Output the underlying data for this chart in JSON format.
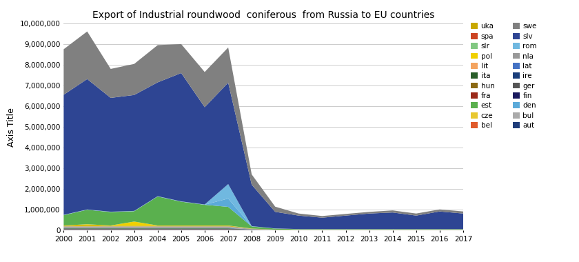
{
  "title": "Export of Industrial roundwood  coniferous  from Russia to EU countries",
  "ylabel": "Axis Title",
  "years": [
    2000,
    2001,
    2002,
    2003,
    2004,
    2005,
    2006,
    2007,
    2008,
    2009,
    2010,
    2011,
    2012,
    2013,
    2014,
    2015,
    2016,
    2017
  ],
  "series": {
    "aut": [
      20000,
      20000,
      20000,
      20000,
      20000,
      20000,
      20000,
      20000,
      5000,
      2000,
      2000,
      2000,
      2000,
      2000,
      2000,
      2000,
      2000,
      2000
    ],
    "bel": [
      5000,
      5000,
      5000,
      5000,
      5000,
      5000,
      5000,
      5000,
      2000,
      1000,
      1000,
      1000,
      1000,
      1000,
      1000,
      1000,
      1000,
      1000
    ],
    "bul": [
      5000,
      5000,
      5000,
      5000,
      5000,
      5000,
      5000,
      5000,
      2000,
      1000,
      1000,
      1000,
      1000,
      1000,
      1000,
      1000,
      1000,
      1000
    ],
    "cze": [
      5000,
      5000,
      5000,
      5000,
      5000,
      5000,
      5000,
      5000,
      2000,
      1000,
      1000,
      1000,
      1000,
      1000,
      1000,
      1000,
      1000,
      1000
    ],
    "den": [
      5000,
      5000,
      5000,
      5000,
      5000,
      5000,
      5000,
      400000,
      5000,
      2000,
      1000,
      1000,
      1000,
      1000,
      1000,
      1000,
      1000,
      1000
    ],
    "est": [
      500000,
      700000,
      650000,
      500000,
      1400000,
      1150000,
      1000000,
      900000,
      100000,
      50000,
      20000,
      20000,
      20000,
      20000,
      20000,
      20000,
      20000,
      20000
    ],
    "fin": [
      20000,
      20000,
      20000,
      20000,
      20000,
      20000,
      20000,
      20000,
      10000,
      5000,
      5000,
      5000,
      5000,
      5000,
      5000,
      5000,
      5000,
      5000
    ],
    "fra": [
      5000,
      5000,
      5000,
      5000,
      5000,
      5000,
      5000,
      5000,
      2000,
      1000,
      1000,
      1000,
      1000,
      1000,
      1000,
      1000,
      1000,
      1000
    ],
    "ger": [
      20000,
      20000,
      20000,
      20000,
      20000,
      20000,
      20000,
      20000,
      10000,
      5000,
      5000,
      5000,
      5000,
      5000,
      5000,
      5000,
      5000,
      5000
    ],
    "hun": [
      5000,
      5000,
      5000,
      5000,
      5000,
      5000,
      5000,
      5000,
      2000,
      1000,
      1000,
      1000,
      1000,
      1000,
      1000,
      1000,
      1000,
      1000
    ],
    "ire": [
      5000,
      5000,
      5000,
      5000,
      5000,
      5000,
      5000,
      5000,
      2000,
      1000,
      1000,
      1000,
      1000,
      1000,
      1000,
      1000,
      1000,
      1000
    ],
    "ita": [
      20000,
      20000,
      20000,
      20000,
      20000,
      20000,
      20000,
      20000,
      5000,
      2000,
      2000,
      2000,
      2000,
      2000,
      2000,
      2000,
      2000,
      2000
    ],
    "lat": [
      20000,
      20000,
      20000,
      20000,
      20000,
      20000,
      20000,
      20000,
      10000,
      5000,
      5000,
      5000,
      5000,
      5000,
      5000,
      5000,
      5000,
      5000
    ],
    "lit": [
      10000,
      10000,
      10000,
      10000,
      10000,
      10000,
      10000,
      10000,
      5000,
      2000,
      2000,
      2000,
      2000,
      2000,
      2000,
      2000,
      2000,
      2000
    ],
    "nla": [
      50000,
      50000,
      50000,
      50000,
      50000,
      50000,
      50000,
      50000,
      20000,
      10000,
      10000,
      10000,
      10000,
      10000,
      10000,
      10000,
      10000,
      10000
    ],
    "pol": [
      10000,
      50000,
      10000,
      200000,
      10000,
      10000,
      10000,
      10000,
      5000,
      2000,
      2000,
      2000,
      2000,
      2000,
      2000,
      2000,
      2000,
      2000
    ],
    "rom": [
      10000,
      10000,
      10000,
      10000,
      10000,
      10000,
      10000,
      700000,
      10000,
      5000,
      5000,
      5000,
      5000,
      5000,
      5000,
      5000,
      5000,
      5000
    ],
    "slr": [
      10000,
      10000,
      10000,
      10000,
      10000,
      10000,
      10000,
      10000,
      5000,
      2000,
      2000,
      2000,
      2000,
      2000,
      2000,
      2000,
      2000,
      2000
    ],
    "slv": [
      5800000,
      6300000,
      5500000,
      5600000,
      5500000,
      6200000,
      4700000,
      4900000,
      2000000,
      800000,
      650000,
      550000,
      650000,
      750000,
      800000,
      650000,
      850000,
      750000
    ],
    "spa": [
      5000,
      5000,
      5000,
      5000,
      5000,
      5000,
      5000,
      5000,
      2000,
      1000,
      1000,
      1000,
      1000,
      1000,
      1000,
      1000,
      1000,
      1000
    ],
    "swe": [
      2200000,
      2300000,
      1400000,
      1500000,
      1800000,
      1400000,
      1700000,
      1700000,
      500000,
      250000,
      100000,
      80000,
      80000,
      80000,
      100000,
      100000,
      100000,
      100000
    ],
    "uka": [
      30000,
      50000,
      30000,
      30000,
      30000,
      30000,
      30000,
      30000,
      10000,
      5000,
      5000,
      5000,
      5000,
      5000,
      5000,
      5000,
      5000,
      5000
    ]
  },
  "colors": {
    "aut": "#1f3d7a",
    "bel": "#e05a2b",
    "bul": "#aaaaaa",
    "cze": "#e8c830",
    "den": "#5baad9",
    "est": "#5ab04e",
    "fin": "#1a1a5e",
    "fra": "#9b2a1a",
    "ger": "#555555",
    "hun": "#8b6914",
    "ire": "#1a3e7a",
    "ita": "#2a5e2a",
    "lat": "#4472c4",
    "lit": "#f4a460",
    "nla": "#999999",
    "pol": "#f0d000",
    "rom": "#70b8e0",
    "slr": "#82c882",
    "slv": "#2e4593",
    "spa": "#cc4422",
    "swe": "#808080",
    "uka": "#c8a800"
  },
  "stack_order": [
    "aut",
    "bel",
    "bul",
    "cze",
    "fin",
    "fra",
    "ger",
    "hun",
    "ire",
    "ita",
    "lat",
    "lit",
    "nla",
    "slr",
    "spa",
    "uka",
    "pol",
    "est",
    "den",
    "rom",
    "slv",
    "swe"
  ],
  "ylim": [
    0,
    10000000
  ],
  "yticks": [
    0,
    1000000,
    2000000,
    3000000,
    4000000,
    5000000,
    6000000,
    7000000,
    8000000,
    9000000,
    10000000
  ],
  "legend_order_col1": [
    "uka",
    "spa",
    "slr",
    "pol",
    "lit",
    "ita",
    "hun",
    "fra",
    "est",
    "cze",
    "bel"
  ],
  "legend_order_col2": [
    "swe",
    "slv",
    "rom",
    "nla",
    "lat",
    "ire",
    "ger",
    "fin",
    "den",
    "bul",
    "aut"
  ]
}
